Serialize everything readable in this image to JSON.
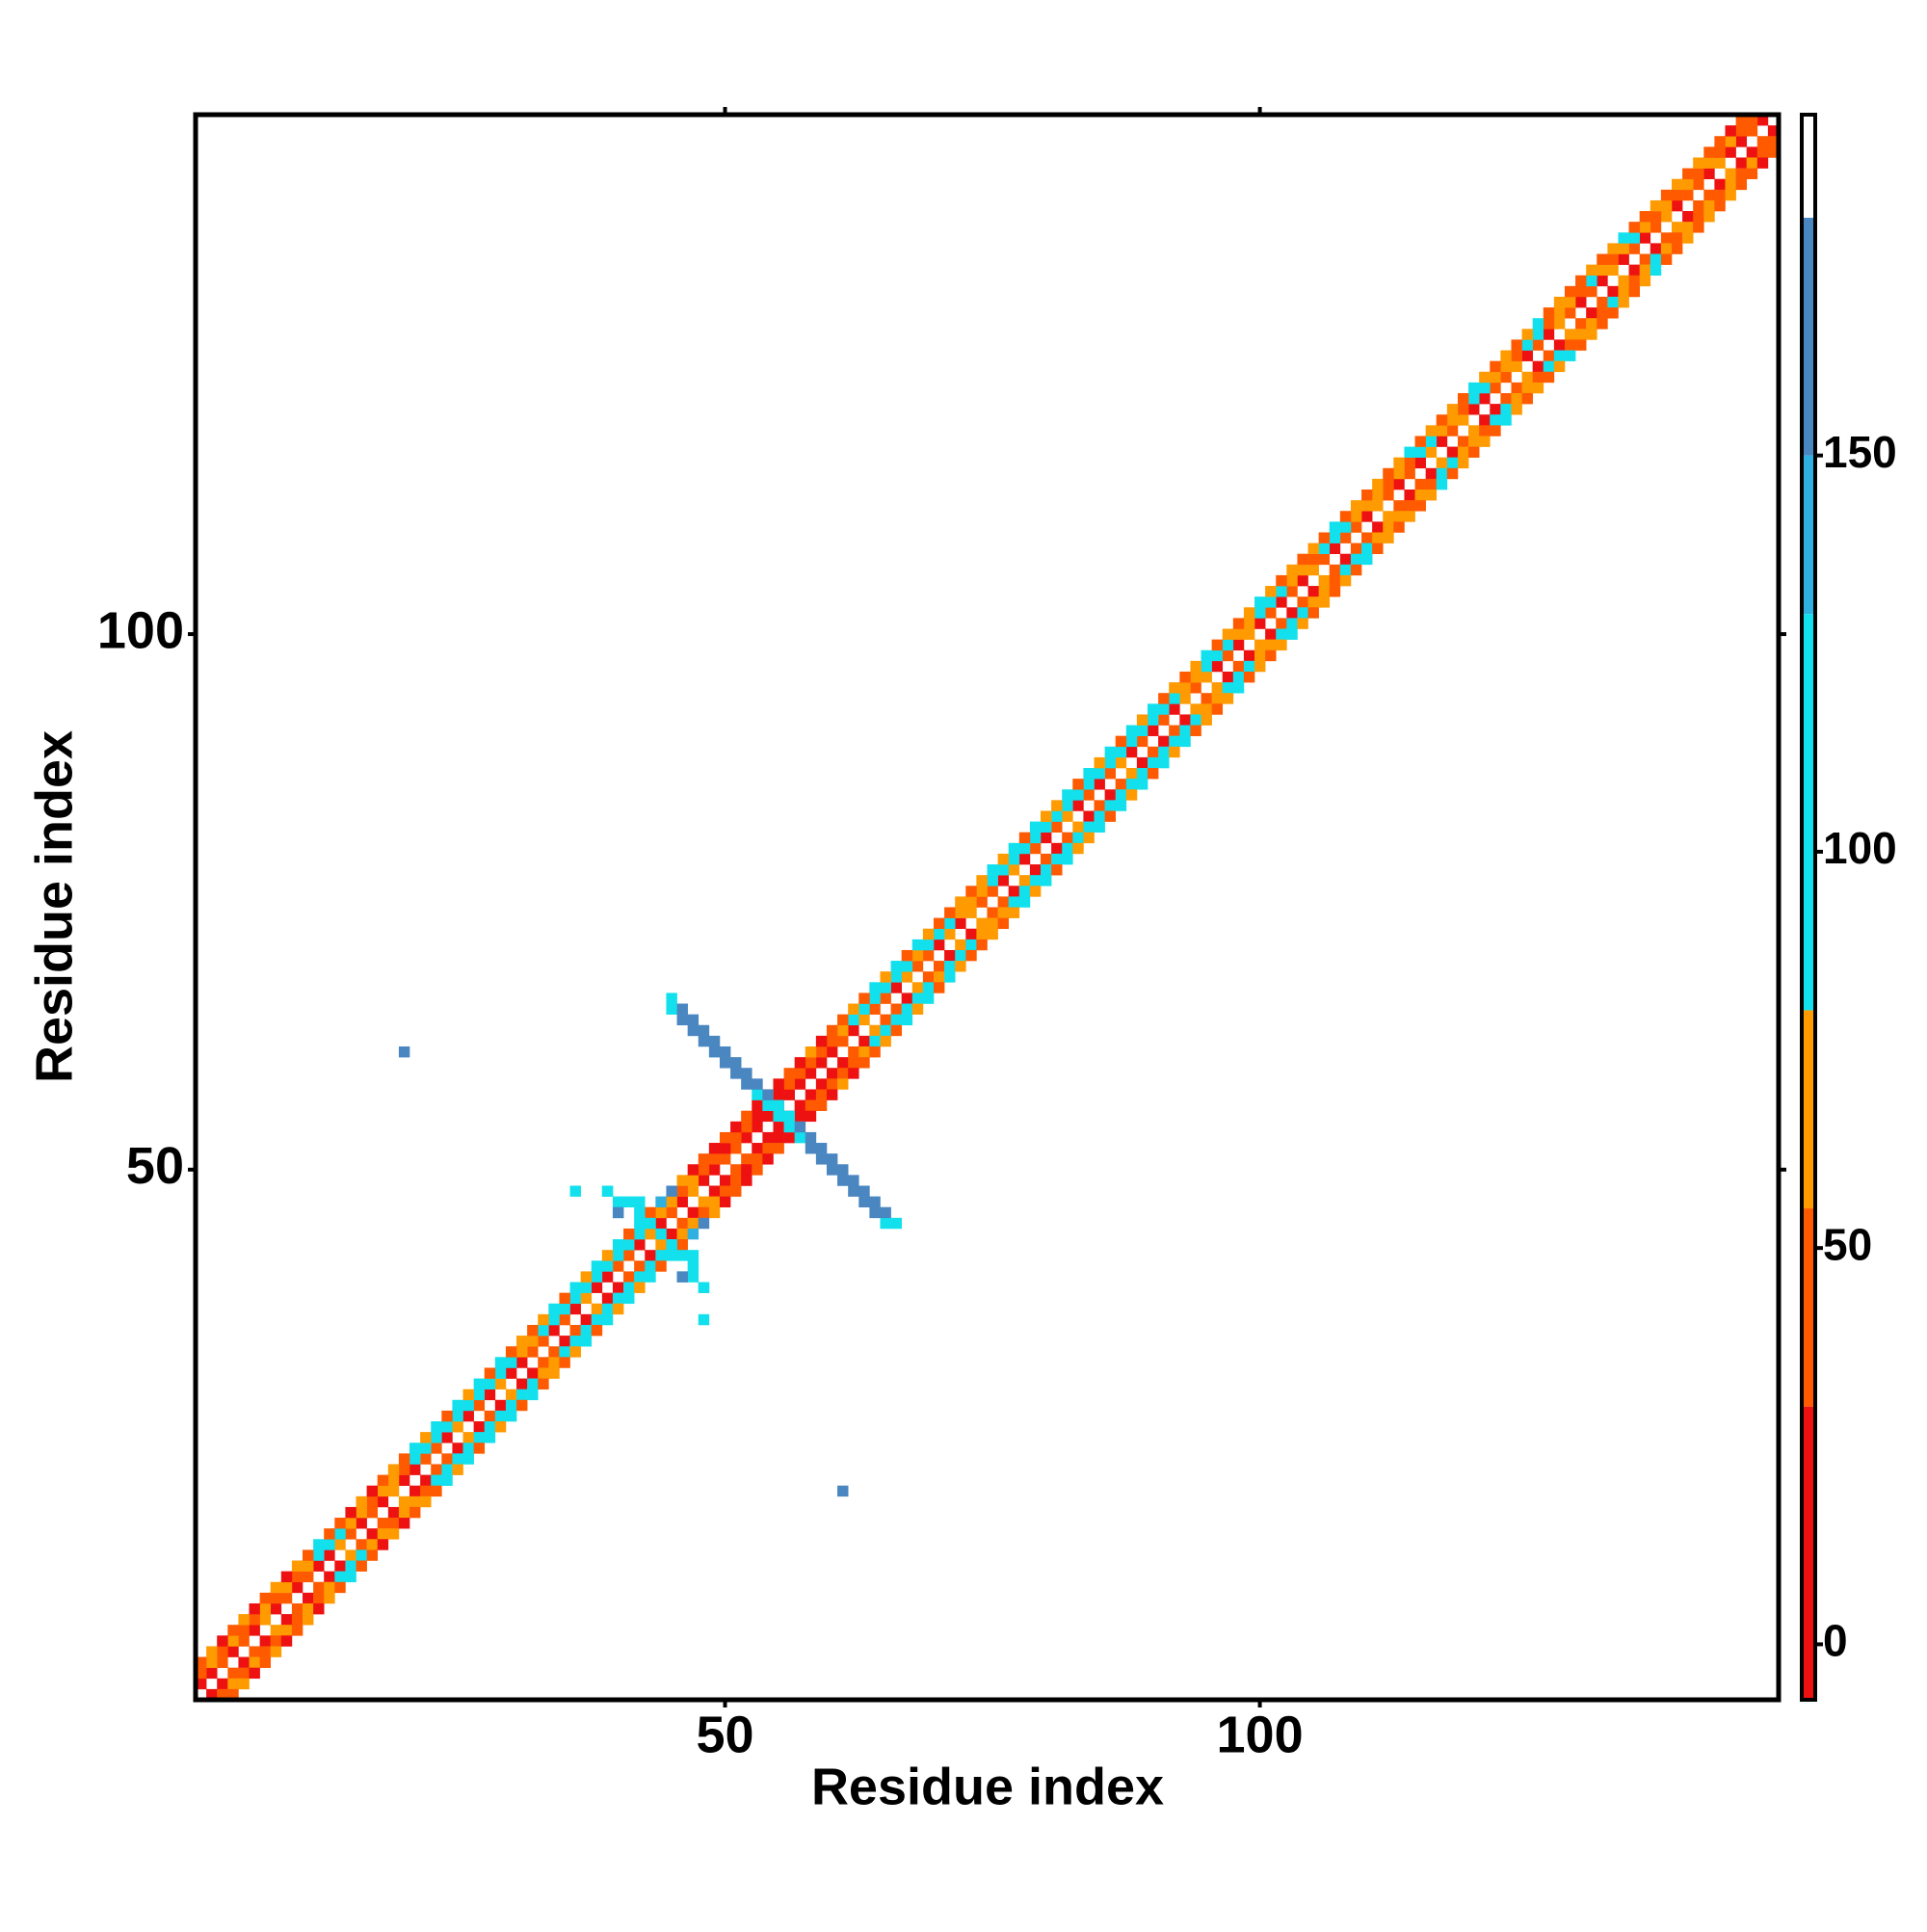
{
  "chart_data": {
    "type": "heatmap",
    "x_label": "Residue index",
    "y_label": "Residue index",
    "xlim": [
      0.5,
      148.5
    ],
    "ylim": [
      0.5,
      148.5
    ],
    "xticks": [
      50,
      100
    ],
    "yticks": [
      50,
      100
    ],
    "symmetric": true,
    "diagonals": [
      {
        "offset": 1,
        "values": [
          5,
          12,
          40,
          8,
          35,
          20,
          60,
          15,
          45,
          5,
          38,
          22,
          10,
          55,
          30,
          18,
          42,
          9,
          62,
          25,
          14,
          48,
          33,
          7,
          58,
          21,
          40,
          12,
          66,
          28,
          9,
          51,
          36,
          17,
          44,
          6,
          70,
          24,
          13,
          47,
          31,
          3,
          57,
          19,
          42,
          11,
          64,
          27,
          8,
          52,
          35,
          16,
          2,
          -3,
          10,
          4,
          20,
          1,
          15,
          6,
          45,
          25,
          60,
          30,
          50,
          20,
          65,
          35,
          40,
          18,
          55,
          28,
          62,
          33,
          48,
          21,
          58,
          26,
          44,
          12,
          36,
          61,
          24,
          50,
          14,
          43,
          67,
          29,
          53,
          19,
          40,
          11,
          57,
          32,
          63,
          22,
          46,
          8,
          59,
          27,
          38,
          15,
          49,
          25,
          66,
          30,
          12,
          54,
          37,
          21,
          60,
          34,
          9,
          47,
          26,
          62,
          18,
          41,
          55,
          23,
          13,
          50,
          31,
          68,
          20,
          44,
          10,
          57,
          35,
          25,
          48,
          16,
          63,
          29,
          52,
          7,
          39,
          61,
          22,
          45,
          30,
          12,
          58,
          5,
          3,
          40,
          8
        ]
      },
      {
        "offset": 2,
        "values": [
          45,
          60,
          38,
          70,
          52,
          41,
          66,
          48,
          57,
          35,
          62,
          95,
          100,
          92,
          55,
          68,
          44,
          58,
          72,
          50,
          105,
          98,
          110,
          96,
          102,
          115,
          94,
          108,
          99,
          112,
          60,
          70,
          100,
          95,
          118,
          92,
          104,
          97,
          110,
          93,
          106,
          99,
          115,
          64,
          58,
          47,
          66,
          40,
          30,
          25,
          42,
          33,
          28,
          38,
          20,
          45,
          30,
          52,
          36,
          48,
          60,
          96,
          104,
          92,
          110,
          98,
          115,
          65,
          100,
          94,
          108,
          72,
          58,
          66,
          102,
          96,
          113,
          91,
          105,
          99,
          117,
          93,
          108,
          97,
          112,
          94,
          103,
          99,
          115,
          92,
          106,
          95,
          68,
          57,
          102,
          99,
          110,
          63,
          71,
          96,
          104,
          92,
          59,
          66,
          48,
          100,
          95,
          108,
          61,
          55,
          70,
          44,
          63,
          52,
          97,
          105,
          68,
          59,
          42,
          101,
          93,
          58,
          65,
          49,
          110,
          96,
          54,
          62,
          73,
          45,
          99,
          60,
          47,
          68,
          102,
          55,
          41,
          64,
          50,
          57,
          38,
          62,
          49,
          70,
          44,
          53
        ]
      },
      {
        "offset": 3,
        "values": [
          30,
          55,
          22,
          48,
          65,
          18,
          40,
          58,
          26,
          62,
          44,
          90,
          35,
          52,
          28,
          60,
          20,
          47,
          68,
          33,
          95,
          57,
          100,
          41,
          92,
          63,
          110,
          50,
          97,
          45,
          66,
          38,
          59,
          93,
          48,
          105,
          55,
          91,
          62,
          100,
          52,
          96,
          43,
          130,
          165,
          60,
          25,
          50,
          18,
          40,
          10,
          35,
          22,
          48,
          15,
          40,
          28,
          55,
          12,
          45,
          38,
          62,
          50,
          97,
          58,
          105,
          46,
          92,
          60,
          35,
          52,
          66,
          40,
          57,
          94,
          61,
          108,
          49,
          99,
          56,
          63,
          102,
          47,
          95,
          58,
          111,
          52,
          93,
          66,
          100,
          45,
          58,
          37,
          62,
          98,
          50,
          67,
          41,
          55,
          93,
          60,
          47,
          70,
          38,
          64,
          52,
          96,
          44,
          59,
          36,
          66,
          41,
          57,
          95,
          48,
          62,
          35,
          70,
          46,
          99,
          55,
          40,
          64,
          33,
          58,
          90,
          47,
          61,
          38,
          52,
          67,
          43,
          56,
          92,
          49,
          35,
          63,
          45,
          58,
          40,
          60,
          34,
          52,
          28,
          45
        ]
      }
    ],
    "cells": [
      [
        45,
        65,
        120
      ],
      [
        45,
        66,
        120
      ],
      [
        46,
        64,
        165
      ],
      [
        46,
        65,
        165
      ],
      [
        47,
        63,
        165
      ],
      [
        47,
        64,
        165
      ],
      [
        48,
        62,
        165
      ],
      [
        48,
        63,
        165
      ],
      [
        49,
        61,
        165
      ],
      [
        49,
        62,
        165
      ],
      [
        50,
        60,
        165
      ],
      [
        50,
        61,
        165
      ],
      [
        51,
        59,
        165
      ],
      [
        51,
        60,
        165
      ],
      [
        52,
        58,
        165
      ],
      [
        52,
        59,
        165
      ],
      [
        53,
        57,
        120
      ],
      [
        53,
        58,
        165
      ],
      [
        54,
        56,
        120
      ],
      [
        54,
        57,
        165
      ],
      [
        55,
        55,
        120
      ],
      [
        55,
        56,
        110
      ],
      [
        20,
        61,
        165
      ],
      [
        41,
        47,
        110
      ],
      [
        42,
        47,
        100
      ],
      [
        42,
        46,
        115
      ],
      [
        43,
        45,
        120
      ],
      [
        44,
        44,
        110
      ],
      [
        46,
        40,
        100
      ],
      [
        47,
        40,
        110
      ],
      [
        48,
        39,
        95
      ],
      [
        48,
        36,
        120
      ],
      [
        40,
        46,
        165
      ],
      [
        39,
        48,
        100
      ]
    ],
    "color_scale": {
      "breaks": [
        -7,
        30,
        55,
        80,
        130,
        150,
        180,
        193
      ],
      "colors": [
        "#ee1111",
        "#ff5a00",
        "#ff9a00",
        "#12e0ec",
        "#2fb0e0",
        "#4a86c0",
        "#ffffff"
      ]
    },
    "colorbar_ticks": [
      0,
      50,
      100,
      150
    ]
  }
}
